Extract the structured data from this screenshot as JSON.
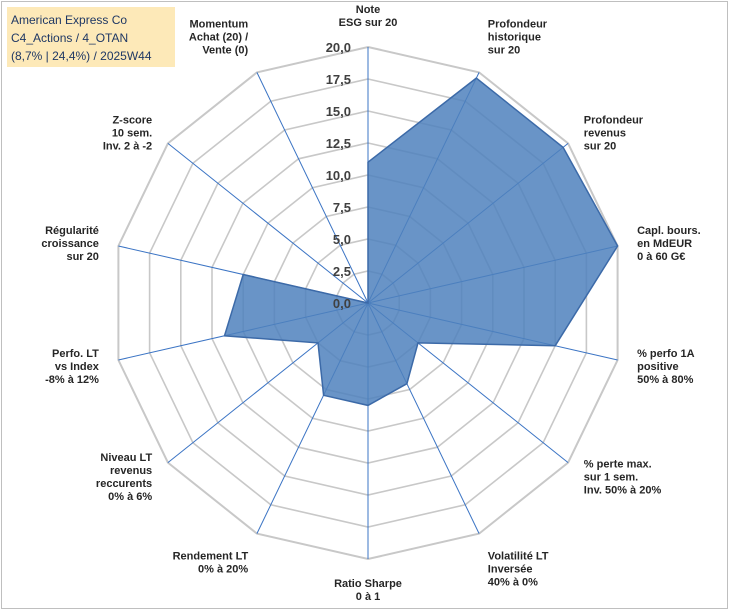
{
  "title_box": {
    "line1": "American Express Co",
    "line2": "C4_Actions / 4_OTAN",
    "line3": "(8,7% | 24,4%) / 2025W44"
  },
  "chart_data": {
    "type": "radar",
    "title": "American Express Co",
    "rlim": [
      0,
      20
    ],
    "tick_labels": [
      "0,0",
      "2,5",
      "5,0",
      "7,5",
      "10,0",
      "12,5",
      "15,0",
      "17,5",
      "20,0"
    ],
    "grid": true,
    "axes": [
      {
        "label": [
          "Note",
          "ESG sur 20"
        ],
        "value": 11
      },
      {
        "label": [
          "Profondeur",
          "historique",
          "sur 20"
        ],
        "value": 19.5
      },
      {
        "label": [
          "Profondeur",
          "revenus",
          "sur 20"
        ],
        "value": 19.5
      },
      {
        "label": [
          "Capl. bours.",
          "en MdEUR",
          "0 à 60 G€"
        ],
        "value": 20
      },
      {
        "label": [
          "% perfo 1A",
          "positive",
          "50% à 80%"
        ],
        "value": 15
      },
      {
        "label": [
          "% perte max.",
          "sur 1 sem.",
          "Inv. 50% à 20%"
        ],
        "value": 5
      },
      {
        "label": [
          "Volatilité LT",
          "Inversée",
          "40% à 0%"
        ],
        "value": 7
      },
      {
        "label": [
          "Ratio Sharpe",
          "0 à 1"
        ],
        "value": 8
      },
      {
        "label": [
          "Rendement LT",
          "0% à 20%"
        ],
        "value": 8
      },
      {
        "label": [
          "Niveau LT",
          "revenus",
          "reccurents",
          "0% à 6%"
        ],
        "value": 5
      },
      {
        "label": [
          "Perfo. LT",
          "vs Index",
          "-8% à 12%"
        ],
        "value": 11.5
      },
      {
        "label": [
          "Régularité",
          "croissance",
          "sur 20"
        ],
        "value": 10
      },
      {
        "label": [
          "Z-score",
          "10 sem.",
          "Inv. 2 à -2"
        ],
        "value": 0
      },
      {
        "label": [
          "Momentum",
          "Achat (20) /",
          "Vente (0)"
        ],
        "value": 0
      }
    ],
    "colors": {
      "fill": "#4f81bd",
      "stroke": "#3c6aa8",
      "spoke": "#3b74c4",
      "ring": "#c8c8c8",
      "title_bg": "#fde9b8",
      "title_text": "#1f3864"
    }
  }
}
